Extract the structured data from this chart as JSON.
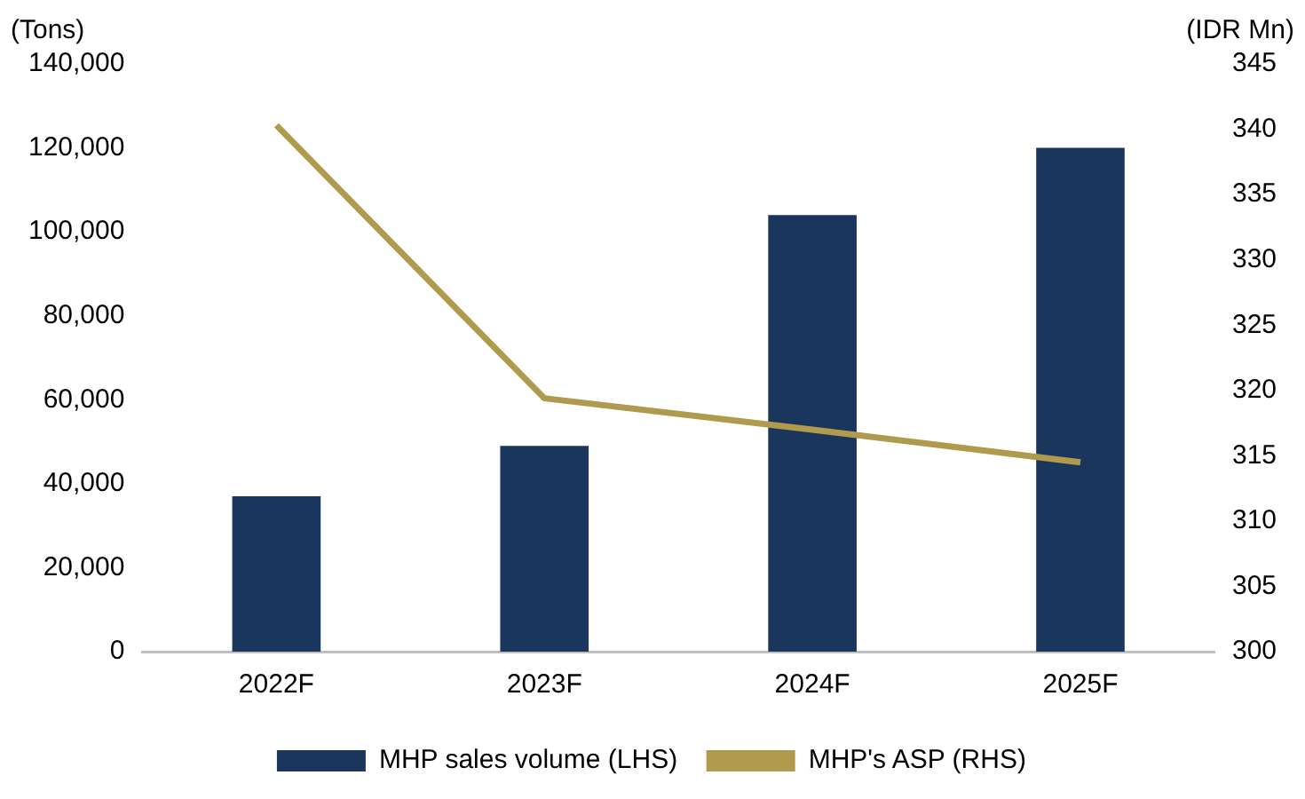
{
  "chart_data": {
    "type": "bar",
    "categories": [
      "2022F",
      "2023F",
      "2024F",
      "2025F"
    ],
    "series": [
      {
        "name": "MHP sales volume (LHS)",
        "color": "#1b365d",
        "values": [
          37000,
          49000,
          104000,
          120000
        ]
      },
      {
        "name": "MHP's ASP (RHS)",
        "type": "line",
        "axis": "y2",
        "color": "#b09a4e",
        "values": [
          340.3,
          319.4,
          317,
          314.5
        ]
      }
    ],
    "ylabel": "(Tons)",
    "y2label": "(IDR Mn)",
    "ylim": [
      0,
      140000
    ],
    "yticks": [
      0,
      {
        "value": 20000,
        "label": "20,000"
      },
      {
        "value": 40000,
        "label": "40,000"
      },
      {
        "value": 60000,
        "label": "60,000"
      },
      {
        "value": 80000,
        "label": "80,000"
      },
      {
        "value": 100000,
        "label": "100,000"
      },
      {
        "value": 120000,
        "label": "120,000"
      },
      {
        "value": 140000,
        "label": "140,000"
      }
    ],
    "y2lim": [
      300,
      345
    ],
    "y2ticks": [
      300,
      305,
      310,
      315,
      320,
      325,
      330,
      335,
      340,
      345
    ],
    "grid": false,
    "legend": "bottom",
    "marker": "none"
  }
}
